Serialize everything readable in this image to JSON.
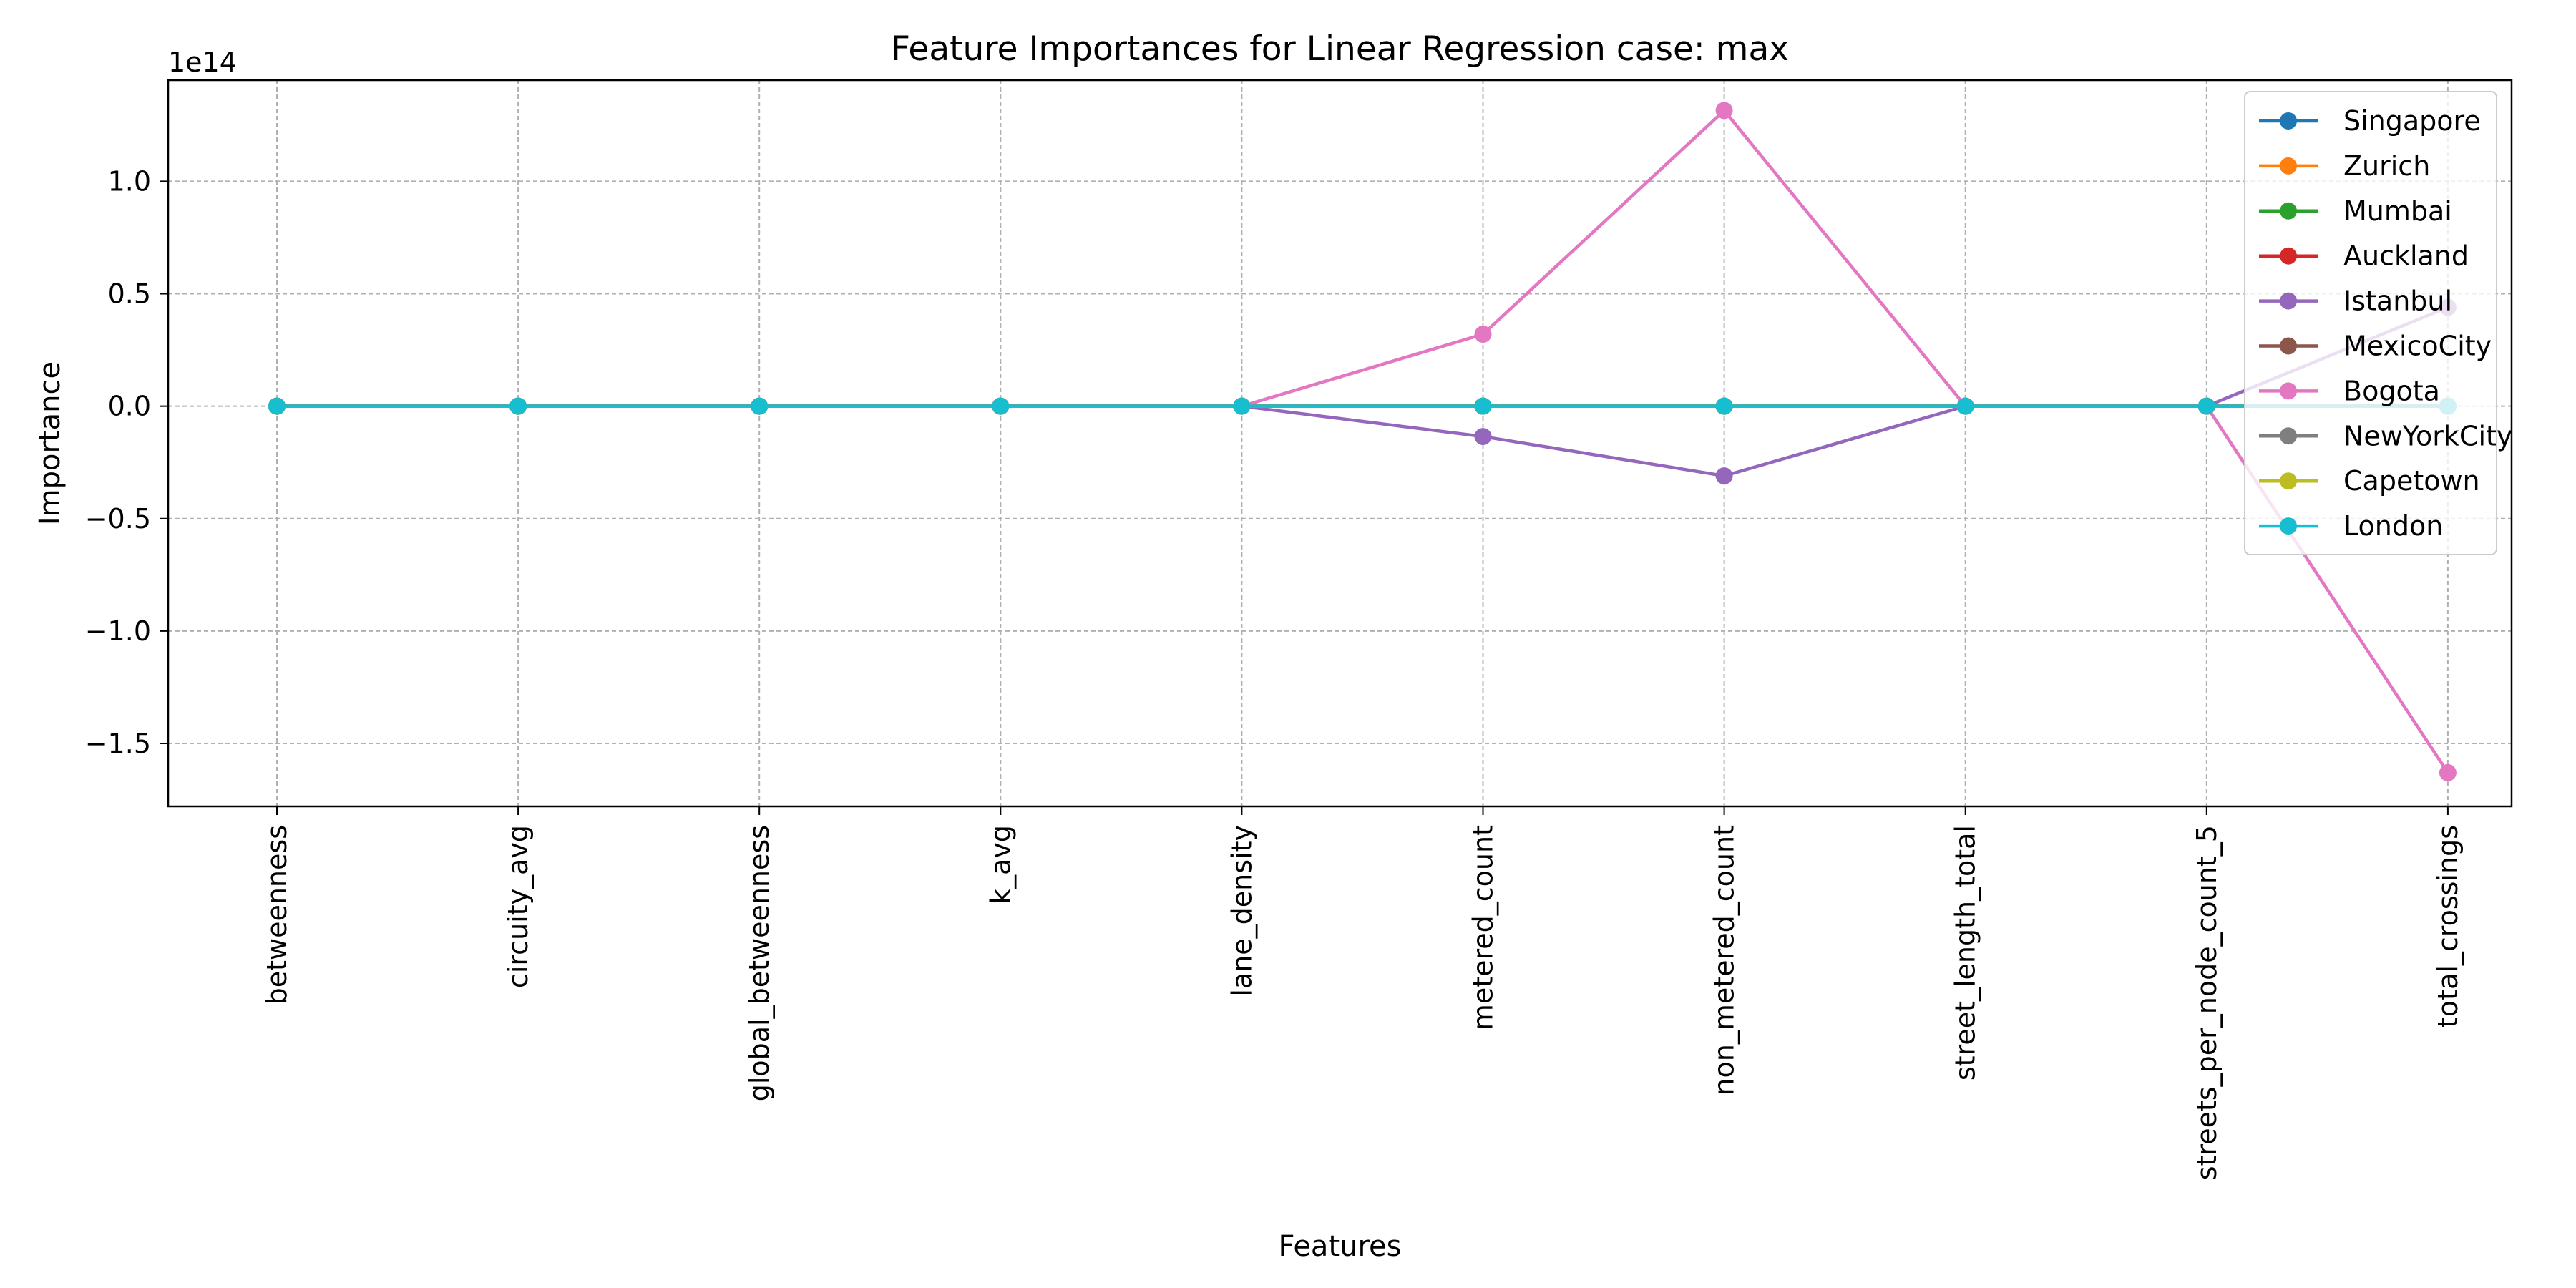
{
  "chart_data": {
    "type": "line",
    "title": "Feature Importances for Linear Regression case: max",
    "xlabel": "Features",
    "ylabel": "Importance",
    "y_multiplier_label": "1e14",
    "y_multiplier": 100000000000000.0,
    "categories": [
      "betweenness",
      "circuity_avg",
      "global_betweenness",
      "k_avg",
      "lane_density",
      "metered_count",
      "non_metered_count",
      "street_length_total",
      "streets_per_node_count_5",
      "total_crossings"
    ],
    "ylim": [
      -1.78,
      1.45
    ],
    "yticks": [
      -1.5,
      -1.0,
      -0.5,
      0.0,
      0.5,
      1.0
    ],
    "ytick_labels": [
      "−1.5",
      "−1.0",
      "−0.5",
      "0.0",
      "0.5",
      "1.0"
    ],
    "grid": true,
    "legend_position": "top-right",
    "series": [
      {
        "name": "Singapore",
        "color": "#1f77b4",
        "values": [
          0,
          0,
          0,
          0,
          0,
          0,
          0,
          0,
          0,
          0
        ]
      },
      {
        "name": "Zurich",
        "color": "#ff7f0e",
        "values": [
          0,
          0,
          0,
          0,
          0,
          0,
          0,
          0,
          0,
          0
        ]
      },
      {
        "name": "Mumbai",
        "color": "#2ca02c",
        "values": [
          0,
          0,
          0,
          0,
          0,
          0,
          0,
          0,
          0,
          0
        ]
      },
      {
        "name": "Auckland",
        "color": "#d62728",
        "values": [
          0,
          0,
          0,
          0,
          0,
          0,
          0,
          0,
          0,
          0
        ]
      },
      {
        "name": "Istanbul",
        "color": "#9467bd",
        "values": [
          0,
          0,
          0,
          0,
          0,
          -0.135,
          -0.31,
          0,
          0,
          0.44
        ]
      },
      {
        "name": "MexicoCity",
        "color": "#8c564b",
        "values": [
          0,
          0,
          0,
          0,
          0,
          0,
          0,
          0,
          0,
          0
        ]
      },
      {
        "name": "Bogota",
        "color": "#e377c2",
        "values": [
          0,
          0,
          0,
          0,
          0,
          0.32,
          1.315,
          0,
          0,
          -1.63
        ]
      },
      {
        "name": "NewYorkCity",
        "color": "#7f7f7f",
        "values": [
          0,
          0,
          0,
          0,
          0,
          0,
          0,
          0,
          0,
          0
        ]
      },
      {
        "name": "Capetown",
        "color": "#bcbd22",
        "values": [
          0,
          0,
          0,
          0,
          0,
          0,
          0,
          0,
          0,
          0
        ]
      },
      {
        "name": "London",
        "color": "#17becf",
        "values": [
          0,
          0,
          0,
          0,
          0,
          0,
          0,
          0,
          0,
          0
        ]
      }
    ]
  }
}
